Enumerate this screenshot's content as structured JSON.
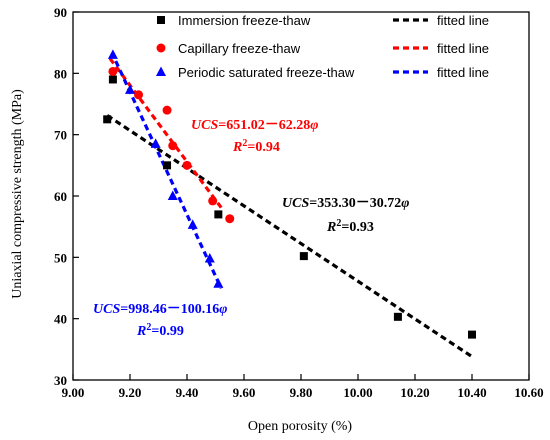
{
  "chart_data": {
    "type": "scatter",
    "title": "",
    "xlabel": "Open porosity (%)",
    "ylabel": "Uniaxial compressive strength (MPa)",
    "xlim": [
      9.0,
      10.6
    ],
    "ylim": [
      30,
      90
    ],
    "xticks": [
      "9.00",
      "9.20",
      "9.40",
      "9.60",
      "9.80",
      "10.00",
      "10.20",
      "10.40",
      "10.60"
    ],
    "yticks": [
      "30",
      "40",
      "50",
      "60",
      "70",
      "80",
      "90"
    ],
    "grid": false,
    "legend_position": "top",
    "series": [
      {
        "name": "Immersion freeze-thaw",
        "marker": "square",
        "color": "#000000",
        "points": [
          [
            9.12,
            72.5
          ],
          [
            9.14,
            79.0
          ],
          [
            9.33,
            65.0
          ],
          [
            9.51,
            57.0
          ],
          [
            9.81,
            50.2
          ],
          [
            10.14,
            40.3
          ],
          [
            10.4,
            37.4
          ]
        ],
        "fit": {
          "legend": "fitted line",
          "intercept": 353.3,
          "slope": -30.72,
          "x_range": [
            9.12,
            10.4
          ],
          "equation": {
            "lhs": "UCS",
            "rhs": "=353.30－30.72",
            "var": "φ",
            "r2_label": "R",
            "r2_value": "=0.93"
          }
        }
      },
      {
        "name": "Capillary freeze-thaw",
        "marker": "circle",
        "color": "#ff0000",
        "points": [
          [
            9.14,
            80.3
          ],
          [
            9.23,
            76.5
          ],
          [
            9.33,
            74.0
          ],
          [
            9.35,
            68.2
          ],
          [
            9.4,
            65.0
          ],
          [
            9.49,
            59.2
          ],
          [
            9.55,
            56.3
          ]
        ],
        "fit": {
          "legend": "fitted line",
          "intercept": 651.02,
          "slope": -62.28,
          "x_range": [
            9.13,
            9.52
          ],
          "equation": {
            "lhs": "UCS",
            "rhs": "=651.02－62.28",
            "var": "φ",
            "r2_label": "R",
            "r2_value": "=0.94"
          }
        }
      },
      {
        "name": "Periodic saturated freeze-thaw",
        "marker": "triangle",
        "color": "#0000ff",
        "points": [
          [
            9.14,
            83.0
          ],
          [
            9.2,
            77.3
          ],
          [
            9.29,
            68.5
          ],
          [
            9.35,
            60.0
          ],
          [
            9.42,
            55.3
          ],
          [
            9.48,
            49.8
          ],
          [
            9.51,
            45.7
          ]
        ],
        "fit": {
          "legend": "fitted line",
          "intercept": 998.46,
          "slope": -100.16,
          "x_range": [
            9.15,
            9.52
          ],
          "equation": {
            "lhs": "UCS",
            "rhs": "=998.46－100.16",
            "var": "φ",
            "r2_label": "R",
            "r2_value": "=0.99"
          }
        }
      }
    ]
  }
}
